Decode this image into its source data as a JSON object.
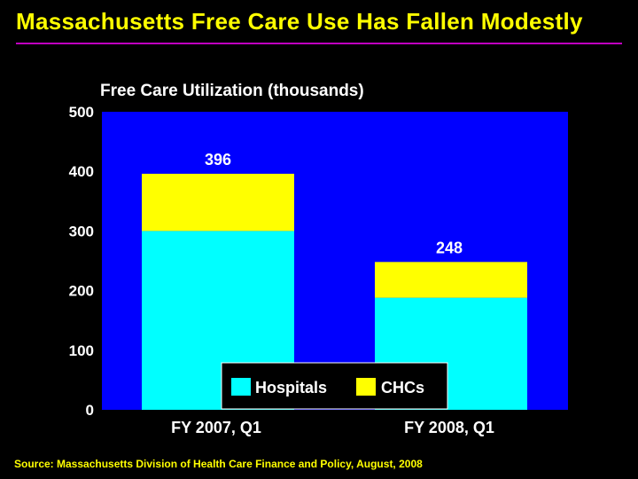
{
  "slide": {
    "title": "Massachusetts Free Care Use Has Fallen Modestly",
    "source": "Source: Massachusetts Division of Health Care Finance and Policy, August, 2008"
  },
  "colors": {
    "background": "#000000",
    "plot_area": "#0000ff",
    "hospitals": "#00ffff",
    "chcs": "#ffff00",
    "title": "#ffff00",
    "title_rule": "#c000c0"
  },
  "chart_data": {
    "type": "bar",
    "stacked": true,
    "title": "Free Care Utilization (thousands)",
    "categories": [
      "FY 2007, Q1",
      "FY 2008, Q1"
    ],
    "series": [
      {
        "name": "Hospitals",
        "values": [
          300,
          188
        ]
      },
      {
        "name": "CHCs",
        "values": [
          96,
          60
        ]
      }
    ],
    "totals": [
      396,
      248
    ],
    "total_labels": [
      "396",
      "248"
    ],
    "ylim": [
      0,
      500
    ],
    "yticks": [
      0,
      100,
      200,
      300,
      400,
      500
    ],
    "ytick_labels": [
      "0",
      "100",
      "200",
      "300",
      "400",
      "500"
    ],
    "grid": false,
    "legend_position": "bottom-center"
  }
}
